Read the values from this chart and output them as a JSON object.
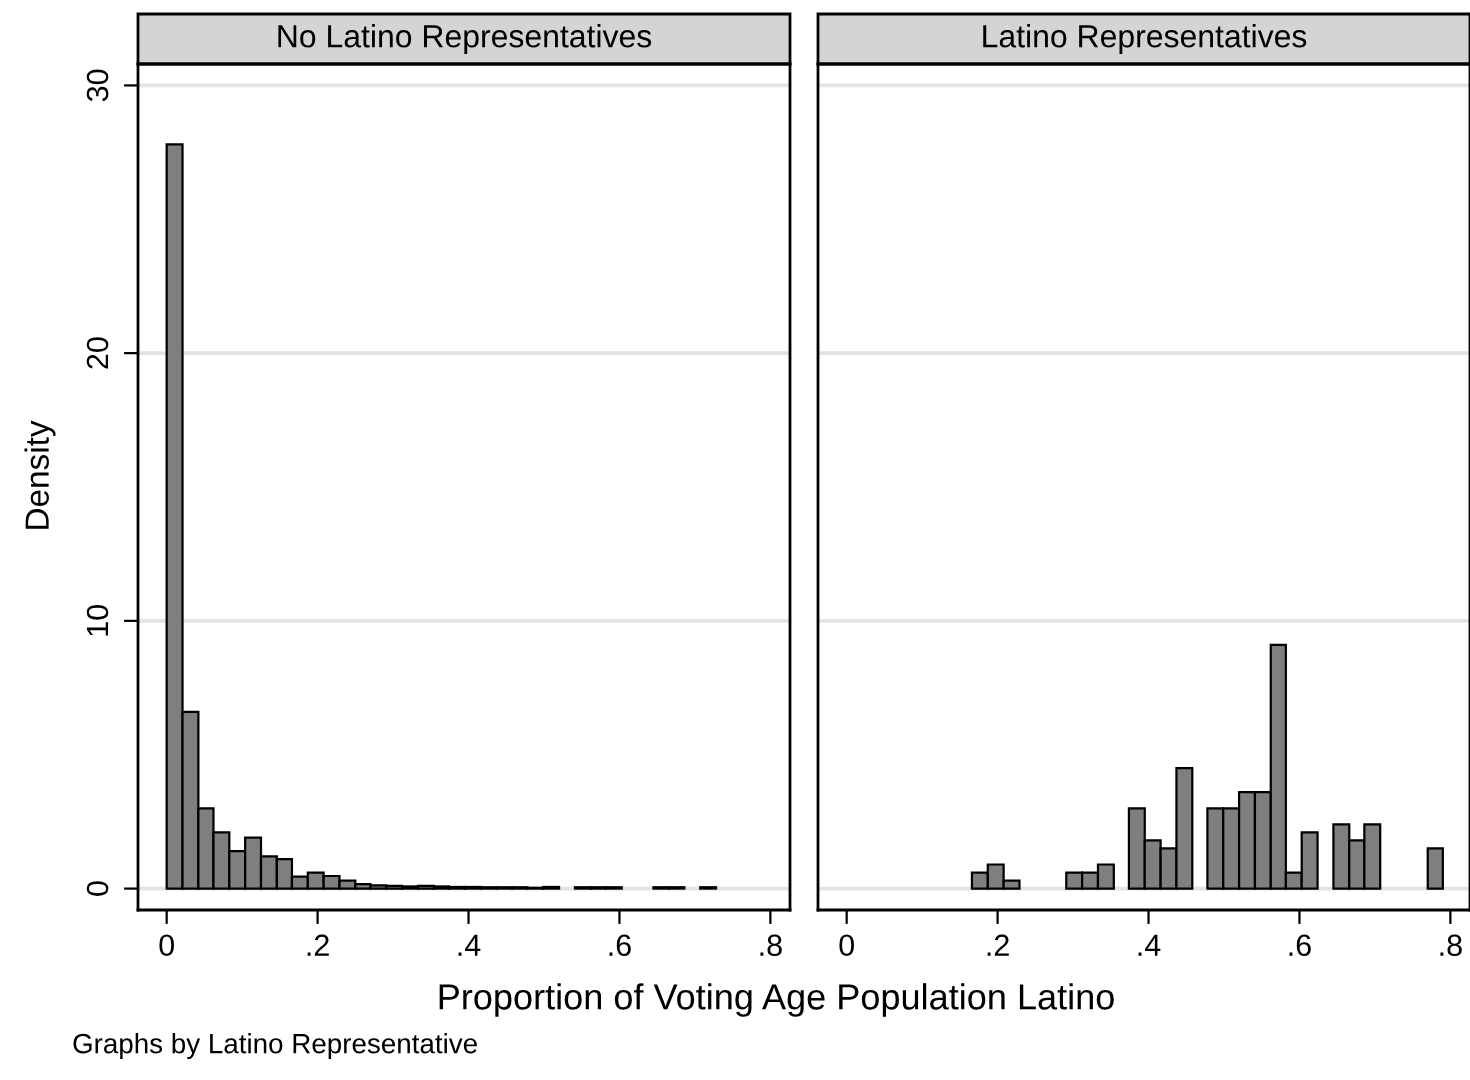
{
  "chart_data": [
    {
      "type": "histogram",
      "title": "No Latino Representatives",
      "xlabel": "Proportion of Voting Age Population Latino",
      "ylabel": "Density",
      "annotations": [
        "Graphs by Latino Representative"
      ],
      "color": "#7f7f7f",
      "bins": [
        0,
        0.021,
        0.042,
        0.062,
        0.083,
        0.104,
        0.125,
        0.146,
        0.166,
        0.187,
        0.208,
        0.229,
        0.25,
        0.27,
        0.291,
        0.312,
        0.333,
        0.354,
        0.374,
        0.395,
        0.416,
        0.437,
        0.458,
        0.478,
        0.499,
        0.52,
        0.541,
        0.562,
        0.582,
        0.603,
        0.645,
        0.666,
        0.686,
        0.707,
        0.728
      ],
      "values": [
        27.8,
        6.6,
        3.0,
        2.1,
        1.4,
        1.9,
        1.2,
        1.1,
        0.45,
        0.6,
        0.47,
        0.3,
        0.17,
        0.12,
        0.1,
        0.08,
        0.1,
        0.08,
        0.06,
        0.06,
        0.05,
        0.05,
        0.05,
        0.03,
        0.06,
        null,
        0.05,
        0.05,
        0.05,
        null,
        0.05,
        0.05,
        null,
        0.05
      ],
      "xlim": [
        -0.038,
        0.826
      ],
      "xticks": [
        0,
        {
          "value": 0.2,
          "label": ".2"
        },
        {
          "value": 0.4,
          "label": ".4"
        },
        {
          "value": 0.6,
          "label": ".6"
        },
        {
          "value": 0.8,
          "label": ".8"
        }
      ],
      "ylim": [
        -0.8,
        30.8
      ],
      "yticks": [
        0,
        10,
        20,
        30
      ],
      "grid": "y"
    },
    {
      "type": "histogram",
      "title": "Latino Representatives",
      "color": "#7f7f7f",
      "bins": [
        0.166,
        0.187,
        0.208,
        0.229,
        0.291,
        0.312,
        0.333,
        0.354,
        0.374,
        0.395,
        0.416,
        0.437,
        0.458,
        0.478,
        0.499,
        0.52,
        0.541,
        0.562,
        0.582,
        0.603,
        0.624,
        0.645,
        0.666,
        0.686,
        0.707,
        0.77,
        0.79
      ],
      "values": [
        0.6,
        0.9,
        0.3,
        null,
        0.6,
        0.6,
        0.9,
        null,
        3.0,
        1.8,
        1.5,
        4.5,
        null,
        3.0,
        3.0,
        3.6,
        3.6,
        9.1,
        0.6,
        2.1,
        null,
        2.4,
        1.8,
        2.4,
        null,
        1.5
      ],
      "xlim": [
        -0.038,
        0.826
      ],
      "xticks": [
        0,
        {
          "value": 0.2,
          "label": ".2"
        },
        {
          "value": 0.4,
          "label": ".4"
        },
        {
          "value": 0.6,
          "label": ".6"
        },
        {
          "value": 0.8,
          "label": ".8"
        }
      ],
      "ylim": [
        -0.8,
        30.8
      ],
      "yticks": [
        0,
        10,
        20,
        30
      ],
      "grid": "y",
      "tick_labels": "x"
    }
  ]
}
